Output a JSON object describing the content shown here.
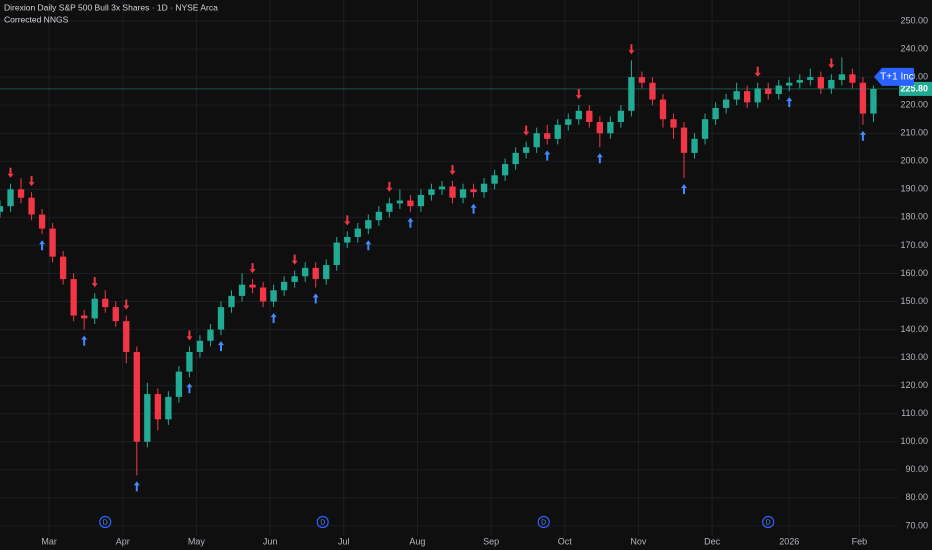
{
  "header": {
    "title": "Direxion Daily S&P 500 Bull 3x Shares · 1D · NYSE Arca",
    "indicator": "Corrected NNGS"
  },
  "chart_data": {
    "type": "candlestick",
    "up_color": "#22ab94",
    "down_color": "#f23645",
    "buy_color": "#448aff",
    "sell_color": "#f23645",
    "xlim": [
      0,
      256
    ],
    "ylim": [
      66.4,
      257.5
    ],
    "grid": true,
    "xticks": [
      {
        "value": 14,
        "label": "Mar"
      },
      {
        "value": 35,
        "label": "Apr"
      },
      {
        "value": 56,
        "label": "May"
      },
      {
        "value": 77,
        "label": "Jun"
      },
      {
        "value": 98,
        "label": "Jul"
      },
      {
        "value": 119,
        "label": "Aug"
      },
      {
        "value": 140,
        "label": "Sep"
      },
      {
        "value": 161,
        "label": "Oct"
      },
      {
        "value": 182,
        "label": "Nov"
      },
      {
        "value": 203,
        "label": "Dec"
      },
      {
        "value": 225,
        "label": "2026"
      },
      {
        "value": 245,
        "label": "Feb"
      }
    ],
    "yticks": [
      {
        "value": 70,
        "label": "70.00"
      },
      {
        "value": 80,
        "label": "80.00"
      },
      {
        "value": 90,
        "label": "90.00"
      },
      {
        "value": 100,
        "label": "100.00"
      },
      {
        "value": 110,
        "label": "110.00"
      },
      {
        "value": 120,
        "label": "120.00"
      },
      {
        "value": 130,
        "label": "130.00"
      },
      {
        "value": 140,
        "label": "140.00"
      },
      {
        "value": 150,
        "label": "150.00"
      },
      {
        "value": 160,
        "label": "160.00"
      },
      {
        "value": 170,
        "label": "170.00"
      },
      {
        "value": 180,
        "label": "180.00"
      },
      {
        "value": 190,
        "label": "190.00"
      },
      {
        "value": 200,
        "label": "200.00"
      },
      {
        "value": 210,
        "label": "210.00"
      },
      {
        "value": 220,
        "label": "220.00"
      },
      {
        "value": 230,
        "label": "230.00"
      },
      {
        "value": 240,
        "label": "240.00"
      },
      {
        "value": 250,
        "label": "250.00"
      }
    ],
    "x": [
      0,
      3,
      6,
      9,
      12,
      15,
      18,
      21,
      24,
      27,
      30,
      33,
      36,
      39,
      42,
      45,
      48,
      51,
      54,
      57,
      60,
      63,
      66,
      69,
      72,
      75,
      78,
      81,
      84,
      87,
      90,
      93,
      96,
      99,
      102,
      105,
      108,
      111,
      114,
      117,
      120,
      123,
      126,
      129,
      132,
      135,
      138,
      141,
      144,
      147,
      150,
      153,
      156,
      159,
      162,
      165,
      168,
      171,
      174,
      177,
      180,
      183,
      186,
      189,
      192,
      195,
      198,
      201,
      204,
      207,
      210,
      213,
      216,
      219,
      222,
      225,
      228,
      231,
      234,
      237,
      240,
      243,
      246,
      249
    ],
    "open": [
      182,
      184,
      190,
      187,
      181,
      176,
      166,
      158,
      145,
      144,
      151,
      148,
      143,
      132,
      100,
      117,
      108,
      116,
      125,
      132,
      136,
      140,
      148,
      152,
      156,
      155,
      150,
      154,
      157,
      159,
      162,
      158,
      163,
      171,
      173,
      176,
      179,
      182,
      185,
      186,
      184,
      188,
      190,
      191,
      187,
      190,
      189,
      192,
      195,
      199,
      203,
      205,
      210,
      208,
      213,
      215,
      218,
      214,
      210,
      214,
      218,
      230,
      228,
      222,
      215,
      212,
      203,
      208,
      215,
      219,
      222,
      225,
      221,
      226,
      224,
      227,
      228,
      229,
      230,
      226,
      229,
      231,
      228,
      217
    ],
    "high": [
      186,
      192,
      194,
      189,
      183,
      178,
      168,
      160,
      147,
      153,
      154,
      150,
      145,
      134,
      121,
      119,
      118,
      127,
      134,
      138,
      142,
      150,
      154,
      160,
      158,
      157,
      156,
      159,
      161,
      164,
      164,
      165,
      173,
      175,
      178,
      181,
      184,
      187,
      190,
      188,
      190,
      192,
      193,
      193,
      192,
      192,
      194,
      197,
      201,
      205,
      207,
      212,
      213,
      215,
      217,
      220,
      220,
      216,
      216,
      220,
      236,
      232,
      230,
      224,
      217,
      214,
      210,
      217,
      221,
      224,
      228,
      227,
      228,
      228,
      229,
      230,
      231,
      233,
      232,
      231,
      237,
      233,
      230,
      227
    ],
    "low": [
      180,
      182,
      185,
      179,
      174,
      164,
      156,
      143,
      140,
      142,
      146,
      141,
      128,
      88,
      98,
      104,
      106,
      114,
      123,
      130,
      134,
      138,
      146,
      150,
      153,
      148,
      148,
      152,
      155,
      157,
      155,
      156,
      161,
      169,
      171,
      174,
      177,
      180,
      183,
      182,
      182,
      186,
      188,
      185,
      185,
      187,
      187,
      190,
      193,
      197,
      201,
      203,
      206,
      206,
      211,
      213,
      212,
      205,
      208,
      212,
      216,
      226,
      220,
      212,
      208,
      194,
      201,
      206,
      213,
      217,
      220,
      219,
      219,
      222,
      222,
      225,
      226,
      227,
      224,
      224,
      227,
      226,
      213,
      214
    ],
    "close": [
      184,
      190,
      187,
      181,
      176,
      166,
      158,
      145,
      144,
      151,
      148,
      143,
      132,
      100,
      117,
      108,
      116,
      125,
      132,
      136,
      140,
      148,
      152,
      156,
      155,
      150,
      154,
      157,
      159,
      162,
      158,
      163,
      171,
      173,
      176,
      179,
      182,
      185,
      186,
      184,
      188,
      190,
      191,
      187,
      190,
      189,
      192,
      195,
      199,
      203,
      205,
      210,
      208,
      213,
      215,
      218,
      214,
      210,
      214,
      218,
      230,
      228,
      222,
      215,
      212,
      203,
      208,
      215,
      219,
      222,
      225,
      221,
      226,
      224,
      227,
      228,
      229,
      230,
      226,
      229,
      231,
      228,
      217,
      225.8
    ],
    "sell_signals": [
      3,
      9,
      27,
      36,
      54,
      72,
      84,
      99,
      111,
      129,
      150,
      165,
      180,
      216,
      237
    ],
    "buy_signals": [
      12,
      24,
      39,
      54,
      63,
      78,
      90,
      105,
      117,
      135,
      156,
      171,
      195,
      225,
      246
    ],
    "dividend_markers": [
      30,
      92,
      155,
      219
    ],
    "dividend_label": "D",
    "last_price": {
      "value": 225.8,
      "label": "225.80"
    },
    "last_price_color": "#22ab94",
    "tag": "T+1 Inc",
    "tag_color": "#2962ff"
  }
}
